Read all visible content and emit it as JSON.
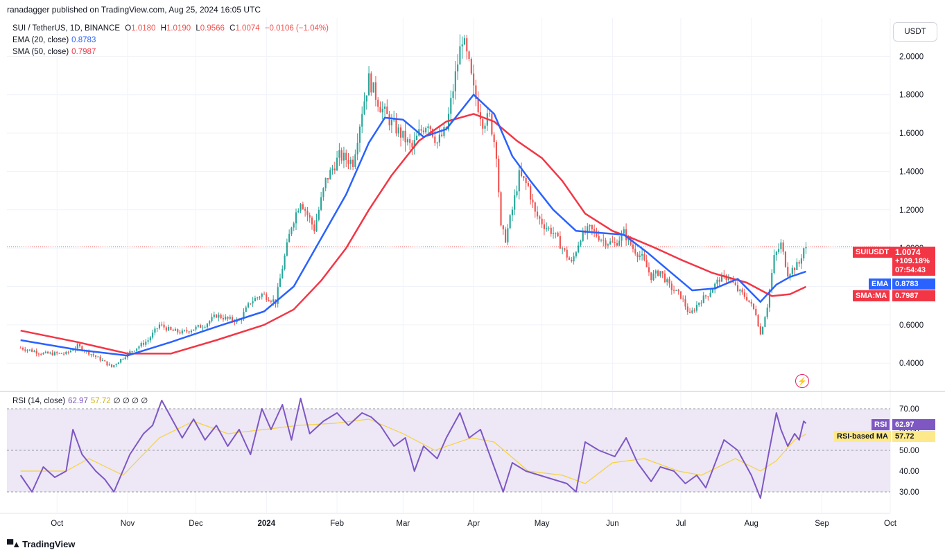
{
  "header": {
    "published": "ranadagger published on TradingView.com, Aug 25, 2024 16:05 UTC"
  },
  "legend": {
    "symbol": "SUI / TetherUS, 1D, BINANCE",
    "o_label": "O",
    "o": "1.0180",
    "h_label": "H",
    "h": "1.0190",
    "l_label": "L",
    "l": "0.9566",
    "c_label": "C",
    "c": "1.0074",
    "change": "−0.0106 (−1.04%)",
    "ema_label": "EMA (20, close)",
    "ema_value": "0.8783",
    "sma_label": "SMA (50, close)",
    "sma_value": "0.7987",
    "rsi_label": "RSI (14, close)",
    "rsi_value": "62.97",
    "rsi_ma_value": "57.72",
    "rsi_extra": "∅ ∅ ∅ ∅"
  },
  "price_scale": {
    "currency": "USDT"
  },
  "badges": {
    "symbol_tag": "SUIUSDT",
    "last_price": "1.0074",
    "change_pct": "+109.18%",
    "countdown": "07:54:43",
    "ema_tag": "EMA",
    "ema_value": "0.8783",
    "sma_tag": "SMA:MA",
    "sma_value": "0.7987",
    "rsi_tag": "RSI",
    "rsi_value": "62.97",
    "rsima_tag": "RSI-based MA",
    "rsima_value": "57.72"
  },
  "branding": {
    "name": "TradingView"
  },
  "colors": {
    "up": "#26a69a",
    "down": "#ef5350",
    "ema": "#2962ff",
    "sma": "#f23645",
    "rsi": "#7e57c2",
    "rsi_ma": "#f5d33c",
    "rsi_band": "#ede7f6"
  },
  "chart_data": [
    {
      "type": "candlestick",
      "title": "SUI / TetherUS, 1D, BINANCE",
      "x_tick_labels": [
        "Oct",
        "Nov",
        "Dec",
        "2024",
        "Feb",
        "Mar",
        "Apr",
        "May",
        "Jun",
        "Jul",
        "Aug",
        "Sep",
        "Oct"
      ],
      "y_ticks": [
        0.4,
        0.6,
        0.8,
        1.0,
        1.2,
        1.4,
        1.6,
        1.8,
        2.0
      ],
      "y_tick_labels": [
        "0.4000",
        "0.6000",
        "0.8000",
        "1.0000",
        "1.2000",
        "1.4000",
        "1.6000",
        "1.8000",
        "2.0000"
      ],
      "ylim": [
        0.26,
        2.2
      ],
      "last_price": 1.0074,
      "price_path": [
        [
          "2023-09-15",
          0.48
        ],
        [
          "2023-09-25",
          0.45
        ],
        [
          "2023-10-05",
          0.45
        ],
        [
          "2023-10-10",
          0.49
        ],
        [
          "2023-10-20",
          0.42
        ],
        [
          "2023-10-25",
          0.38
        ],
        [
          "2023-11-01",
          0.45
        ],
        [
          "2023-11-10",
          0.52
        ],
        [
          "2023-11-15",
          0.6
        ],
        [
          "2023-11-20",
          0.57
        ],
        [
          "2023-11-25",
          0.56
        ],
        [
          "2023-12-05",
          0.6
        ],
        [
          "2023-12-10",
          0.65
        ],
        [
          "2023-12-15",
          0.63
        ],
        [
          "2023-12-20",
          0.62
        ],
        [
          "2023-12-25",
          0.72
        ],
        [
          "2023-12-30",
          0.76
        ],
        [
          "2024-01-05",
          0.72
        ],
        [
          "2024-01-08",
          0.9
        ],
        [
          "2024-01-12",
          1.12
        ],
        [
          "2024-01-16",
          1.25
        ],
        [
          "2024-01-22",
          1.1
        ],
        [
          "2024-01-27",
          1.35
        ],
        [
          "2024-02-02",
          1.48
        ],
        [
          "2024-02-08",
          1.45
        ],
        [
          "2024-02-12",
          1.72
        ],
        [
          "2024-02-15",
          1.88
        ],
        [
          "2024-02-20",
          1.74
        ],
        [
          "2024-02-25",
          1.65
        ],
        [
          "2024-03-01",
          1.58
        ],
        [
          "2024-03-05",
          1.52
        ],
        [
          "2024-03-08",
          1.6
        ],
        [
          "2024-03-12",
          1.66
        ],
        [
          "2024-03-16",
          1.55
        ],
        [
          "2024-03-20",
          1.62
        ],
        [
          "2024-03-24",
          1.9
        ],
        [
          "2024-03-27",
          2.1
        ],
        [
          "2024-03-30",
          1.95
        ],
        [
          "2024-04-01",
          1.82
        ],
        [
          "2024-04-05",
          1.66
        ],
        [
          "2024-04-08",
          1.68
        ],
        [
          "2024-04-11",
          1.5
        ],
        [
          "2024-04-13",
          1.1
        ],
        [
          "2024-04-15",
          1.05
        ],
        [
          "2024-04-18",
          1.2
        ],
        [
          "2024-04-21",
          1.38
        ],
        [
          "2024-04-25",
          1.32
        ],
        [
          "2024-04-28",
          1.18
        ],
        [
          "2024-05-02",
          1.12
        ],
        [
          "2024-05-06",
          1.08
        ],
        [
          "2024-05-10",
          1.0
        ],
        [
          "2024-05-14",
          0.92
        ],
        [
          "2024-05-18",
          1.06
        ],
        [
          "2024-05-22",
          1.1
        ],
        [
          "2024-05-28",
          1.04
        ],
        [
          "2024-06-02",
          1.02
        ],
        [
          "2024-06-06",
          1.08
        ],
        [
          "2024-06-10",
          1.0
        ],
        [
          "2024-06-14",
          0.95
        ],
        [
          "2024-06-18",
          0.85
        ],
        [
          "2024-06-22",
          0.88
        ],
        [
          "2024-06-26",
          0.8
        ],
        [
          "2024-07-01",
          0.75
        ],
        [
          "2024-07-05",
          0.65
        ],
        [
          "2024-07-09",
          0.72
        ],
        [
          "2024-07-13",
          0.76
        ],
        [
          "2024-07-18",
          0.84
        ],
        [
          "2024-07-22",
          0.85
        ],
        [
          "2024-07-26",
          0.78
        ],
        [
          "2024-07-30",
          0.74
        ],
        [
          "2024-08-03",
          0.66
        ],
        [
          "2024-08-05",
          0.55
        ],
        [
          "2024-08-08",
          0.7
        ],
        [
          "2024-08-11",
          0.95
        ],
        [
          "2024-08-14",
          1.02
        ],
        [
          "2024-08-17",
          0.87
        ],
        [
          "2024-08-20",
          0.9
        ],
        [
          "2024-08-22",
          0.92
        ],
        [
          "2024-08-24",
          1.0
        ],
        [
          "2024-08-25",
          1.0074
        ]
      ],
      "ema_path": [
        [
          "2023-09-15",
          0.52
        ],
        [
          "2023-10-10",
          0.47
        ],
        [
          "2023-11-01",
          0.44
        ],
        [
          "2023-11-20",
          0.51
        ],
        [
          "2023-12-10",
          0.59
        ],
        [
          "2023-12-31",
          0.67
        ],
        [
          "2024-01-13",
          0.8
        ],
        [
          "2024-01-25",
          1.05
        ],
        [
          "2024-02-05",
          1.28
        ],
        [
          "2024-02-15",
          1.55
        ],
        [
          "2024-02-22",
          1.68
        ],
        [
          "2024-03-01",
          1.67
        ],
        [
          "2024-03-10",
          1.58
        ],
        [
          "2024-03-20",
          1.62
        ],
        [
          "2024-04-01",
          1.8
        ],
        [
          "2024-04-10",
          1.7
        ],
        [
          "2024-04-18",
          1.48
        ],
        [
          "2024-04-26",
          1.35
        ],
        [
          "2024-05-06",
          1.2
        ],
        [
          "2024-05-16",
          1.09
        ],
        [
          "2024-05-26",
          1.08
        ],
        [
          "2024-06-06",
          1.07
        ],
        [
          "2024-06-16",
          0.98
        ],
        [
          "2024-06-26",
          0.88
        ],
        [
          "2024-07-06",
          0.78
        ],
        [
          "2024-07-16",
          0.79
        ],
        [
          "2024-07-26",
          0.84
        ],
        [
          "2024-08-05",
          0.72
        ],
        [
          "2024-08-12",
          0.81
        ],
        [
          "2024-08-18",
          0.85
        ],
        [
          "2024-08-25",
          0.8783
        ]
      ],
      "sma_path": [
        [
          "2023-09-15",
          0.57
        ],
        [
          "2023-10-10",
          0.51
        ],
        [
          "2023-11-01",
          0.45
        ],
        [
          "2023-11-20",
          0.45
        ],
        [
          "2023-12-10",
          0.52
        ],
        [
          "2023-12-31",
          0.6
        ],
        [
          "2024-01-13",
          0.68
        ],
        [
          "2024-01-25",
          0.83
        ],
        [
          "2024-02-05",
          1.0
        ],
        [
          "2024-02-15",
          1.2
        ],
        [
          "2024-02-25",
          1.38
        ],
        [
          "2024-03-08",
          1.56
        ],
        [
          "2024-03-20",
          1.66
        ],
        [
          "2024-04-01",
          1.7
        ],
        [
          "2024-04-10",
          1.66
        ],
        [
          "2024-04-20",
          1.56
        ],
        [
          "2024-05-01",
          1.47
        ],
        [
          "2024-05-10",
          1.35
        ],
        [
          "2024-05-20",
          1.18
        ],
        [
          "2024-06-01",
          1.09
        ],
        [
          "2024-06-10",
          1.05
        ],
        [
          "2024-06-20",
          1.0
        ],
        [
          "2024-07-01",
          0.94
        ],
        [
          "2024-07-15",
          0.87
        ],
        [
          "2024-07-30",
          0.82
        ],
        [
          "2024-08-10",
          0.75
        ],
        [
          "2024-08-18",
          0.76
        ],
        [
          "2024-08-25",
          0.7987
        ]
      ]
    },
    {
      "type": "line",
      "title": "RSI (14, close)",
      "y_ticks": [
        30,
        40,
        50,
        60,
        70
      ],
      "y_tick_labels": [
        "30.00",
        "40.00",
        "50.00",
        "60.00",
        "70.00"
      ],
      "ylim": [
        20,
        78
      ],
      "band": [
        30,
        70
      ],
      "series": [
        {
          "name": "RSI",
          "last": 62.97,
          "path": [
            [
              "2023-09-15",
              38
            ],
            [
              "2023-09-20",
              30
            ],
            [
              "2023-09-25",
              42
            ],
            [
              "2023-09-30",
              37
            ],
            [
              "2023-10-05",
              40
            ],
            [
              "2023-10-08",
              60
            ],
            [
              "2023-10-12",
              48
            ],
            [
              "2023-10-18",
              40
            ],
            [
              "2023-10-22",
              36
            ],
            [
              "2023-10-26",
              30
            ],
            [
              "2023-11-02",
              48
            ],
            [
              "2023-11-08",
              58
            ],
            [
              "2023-11-12",
              62
            ],
            [
              "2023-11-16",
              74
            ],
            [
              "2023-11-20",
              66
            ],
            [
              "2023-11-25",
              56
            ],
            [
              "2023-11-30",
              65
            ],
            [
              "2023-12-05",
              55
            ],
            [
              "2023-12-10",
              62
            ],
            [
              "2023-12-15",
              52
            ],
            [
              "2023-12-20",
              60
            ],
            [
              "2023-12-25",
              48
            ],
            [
              "2023-12-30",
              70
            ],
            [
              "2024-01-03",
              60
            ],
            [
              "2024-01-08",
              72
            ],
            [
              "2024-01-12",
              55
            ],
            [
              "2024-01-16",
              75
            ],
            [
              "2024-01-20",
              58
            ],
            [
              "2024-01-26",
              64
            ],
            [
              "2024-02-01",
              68
            ],
            [
              "2024-02-06",
              62
            ],
            [
              "2024-02-12",
              68
            ],
            [
              "2024-02-16",
              66
            ],
            [
              "2024-02-20",
              62
            ],
            [
              "2024-02-26",
              52
            ],
            [
              "2024-03-02",
              56
            ],
            [
              "2024-03-06",
              40
            ],
            [
              "2024-03-10",
              52
            ],
            [
              "2024-03-16",
              46
            ],
            [
              "2024-03-20",
              56
            ],
            [
              "2024-03-26",
              68
            ],
            [
              "2024-03-30",
              56
            ],
            [
              "2024-04-04",
              60
            ],
            [
              "2024-04-08",
              48
            ],
            [
              "2024-04-14",
              30
            ],
            [
              "2024-04-18",
              44
            ],
            [
              "2024-04-24",
              40
            ],
            [
              "2024-04-30",
              38
            ],
            [
              "2024-05-06",
              36
            ],
            [
              "2024-05-12",
              34
            ],
            [
              "2024-05-16",
              30
            ],
            [
              "2024-05-20",
              54
            ],
            [
              "2024-05-26",
              50
            ],
            [
              "2024-06-02",
              47
            ],
            [
              "2024-06-07",
              56
            ],
            [
              "2024-06-12",
              44
            ],
            [
              "2024-06-18",
              35
            ],
            [
              "2024-06-22",
              42
            ],
            [
              "2024-06-28",
              40
            ],
            [
              "2024-07-03",
              34
            ],
            [
              "2024-07-08",
              38
            ],
            [
              "2024-07-12",
              32
            ],
            [
              "2024-07-20",
              55
            ],
            [
              "2024-07-26",
              50
            ],
            [
              "2024-08-01",
              38
            ],
            [
              "2024-08-05",
              27
            ],
            [
              "2024-08-08",
              45
            ],
            [
              "2024-08-12",
              68
            ],
            [
              "2024-08-14",
              60
            ],
            [
              "2024-08-17",
              52
            ],
            [
              "2024-08-20",
              58
            ],
            [
              "2024-08-22",
              55
            ],
            [
              "2024-08-24",
              64
            ],
            [
              "2024-08-25",
              62.97
            ]
          ]
        },
        {
          "name": "RSI-based MA",
          "last": 57.72,
          "path": [
            [
              "2023-09-15",
              40
            ],
            [
              "2023-10-05",
              40
            ],
            [
              "2023-10-15",
              46
            ],
            [
              "2023-10-30",
              38
            ],
            [
              "2023-11-15",
              56
            ],
            [
              "2023-11-30",
              64
            ],
            [
              "2023-12-15",
              58
            ],
            [
              "2023-12-31",
              60
            ],
            [
              "2024-01-15",
              62
            ],
            [
              "2024-01-31",
              63
            ],
            [
              "2024-02-15",
              65
            ],
            [
              "2024-03-01",
              58
            ],
            [
              "2024-03-15",
              50
            ],
            [
              "2024-03-31",
              56
            ],
            [
              "2024-04-10",
              54
            ],
            [
              "2024-04-25",
              40
            ],
            [
              "2024-05-10",
              38
            ],
            [
              "2024-05-20",
              34
            ],
            [
              "2024-06-01",
              44
            ],
            [
              "2024-06-15",
              46
            ],
            [
              "2024-06-30",
              40
            ],
            [
              "2024-07-10",
              38
            ],
            [
              "2024-07-25",
              46
            ],
            [
              "2024-08-05",
              40
            ],
            [
              "2024-08-12",
              45
            ],
            [
              "2024-08-20",
              55
            ],
            [
              "2024-08-25",
              57.72
            ]
          ]
        }
      ]
    }
  ]
}
